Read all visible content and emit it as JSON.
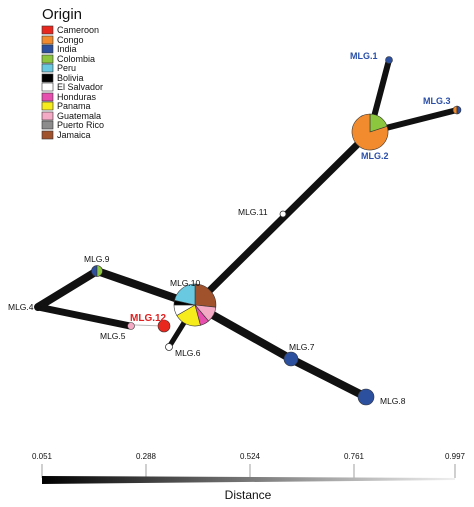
{
  "legend": {
    "title": "Origin",
    "items": [
      {
        "label": "Cameroon",
        "color": "#e8271e"
      },
      {
        "label": "Congo",
        "color": "#f28a2e"
      },
      {
        "label": "India",
        "color": "#2c4f9e"
      },
      {
        "label": "Colombia",
        "color": "#8cc63f"
      },
      {
        "label": "Peru",
        "color": "#69c9e0"
      },
      {
        "label": "Bolivia",
        "color": "#000000"
      },
      {
        "label": "El Salvador",
        "color": "#ffffff"
      },
      {
        "label": "Honduras",
        "color": "#e74fae"
      },
      {
        "label": "Panama",
        "color": "#f7ec1b"
      },
      {
        "label": "Guatemala",
        "color": "#f4a9c4"
      },
      {
        "label": "Puerto Rico",
        "color": "#8c8c8c"
      },
      {
        "label": "Jamaica",
        "color": "#a0522d"
      }
    ]
  },
  "nodes": {
    "mlg1": "MLG.1",
    "mlg2": "MLG.2",
    "mlg3": "MLG.3",
    "mlg4": "MLG.4",
    "mlg5": "MLG.5",
    "mlg6": "MLG.6",
    "mlg7": "MLG.7",
    "mlg8": "MLG.8",
    "mlg9": "MLG.9",
    "mlg10": "MLG.10",
    "mlg11": "MLG.11",
    "mlg12": "MLG.12"
  },
  "scale": {
    "ticks": [
      "0.051",
      "0.288",
      "0.524",
      "0.761",
      "0.997"
    ],
    "title": "Distance"
  }
}
